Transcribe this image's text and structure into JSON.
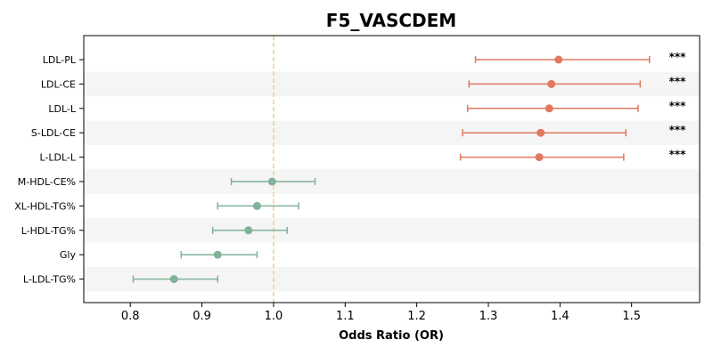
{
  "chart_data": {
    "type": "forest",
    "title": "F5_VASCDEM",
    "xlabel": "Odds Ratio (OR)",
    "ylabel": "",
    "xlim": [
      0.735,
      1.595
    ],
    "xticks": [
      "0.8",
      "0.9",
      "1.0",
      "1.1",
      "1.2",
      "1.3",
      "1.4",
      "1.5"
    ],
    "reference_line": 1.0,
    "grid": false,
    "colors": {
      "significant": "#e07a5f",
      "nonsignificant": "#81b29a",
      "reference": "#f2cc8f",
      "band": "#f5f5f5"
    },
    "rows": [
      {
        "label": "LDL-PL",
        "or": 1.398,
        "lo": 1.282,
        "hi": 1.525,
        "sig": "***"
      },
      {
        "label": "LDL-CE",
        "or": 1.388,
        "lo": 1.273,
        "hi": 1.512,
        "sig": "***"
      },
      {
        "label": "LDL-L",
        "or": 1.385,
        "lo": 1.271,
        "hi": 1.509,
        "sig": "***"
      },
      {
        "label": "S-LDL-CE",
        "or": 1.373,
        "lo": 1.264,
        "hi": 1.492,
        "sig": "***"
      },
      {
        "label": "L-LDL-L",
        "or": 1.371,
        "lo": 1.261,
        "hi": 1.489,
        "sig": "***"
      },
      {
        "label": "M-HDL-CE%",
        "or": 0.998,
        "lo": 0.941,
        "hi": 1.058,
        "sig": ""
      },
      {
        "label": "XL-HDL-TG%",
        "or": 0.977,
        "lo": 0.922,
        "hi": 1.035,
        "sig": ""
      },
      {
        "label": "L-HDL-TG%",
        "or": 0.965,
        "lo": 0.915,
        "hi": 1.019,
        "sig": ""
      },
      {
        "label": "Gly",
        "or": 0.922,
        "lo": 0.871,
        "hi": 0.977,
        "sig": ""
      },
      {
        "label": "L-LDL-TG%",
        "or": 0.861,
        "lo": 0.804,
        "hi": 0.922,
        "sig": ""
      }
    ]
  }
}
